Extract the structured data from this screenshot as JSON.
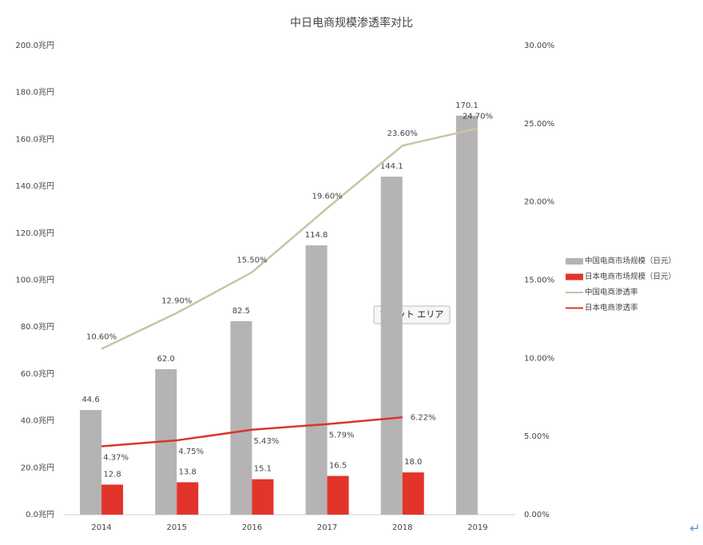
{
  "chart_data": {
    "type": "bar_line",
    "title": "中日电商规模渗透率对比",
    "categories": [
      "2014",
      "2015",
      "2016",
      "2017",
      "2018",
      "2019"
    ],
    "series": [
      {
        "name": "中国电商市场规模（日元）",
        "type": "bar",
        "color": "#b5b3b4",
        "values": [
          44.6,
          62.0,
          82.5,
          114.8,
          144.1,
          170.1
        ],
        "value_labels": [
          "44.6",
          "62.0",
          "82.5",
          "114.8",
          "144.1",
          "170.1"
        ]
      },
      {
        "name": "日本电商市场规模（日元）",
        "type": "bar",
        "color": "#e2342a",
        "values": [
          12.8,
          13.8,
          15.1,
          16.5,
          18.0,
          null
        ],
        "value_labels": [
          "12.8",
          "13.8",
          "15.1",
          "16.5",
          "18.0",
          null
        ]
      },
      {
        "name": "中国电商渗透率",
        "type": "line",
        "axis": "y2",
        "color": "#c9c4a3",
        "values": [
          10.6,
          12.9,
          15.5,
          19.6,
          23.6,
          24.7
        ],
        "value_labels": [
          "10.60%",
          "12.90%",
          "15.50%",
          "19.60%",
          "23.60%",
          "24.70%"
        ]
      },
      {
        "name": "日本电商渗透率",
        "type": "line",
        "axis": "y2",
        "color": "#d9362b",
        "values": [
          4.37,
          4.75,
          5.43,
          5.79,
          6.22,
          null
        ],
        "value_labels": [
          "4.37%",
          "4.75%",
          "5.43%",
          "5.79%",
          "6.22%",
          null
        ]
      }
    ],
    "ylim": [
      0,
      200
    ],
    "yticks": [
      {
        "value": 0,
        "label": "0.0兆円"
      },
      {
        "value": 20,
        "label": "20.0兆円"
      },
      {
        "value": 40,
        "label": "40.0兆円"
      },
      {
        "value": 60,
        "label": "60.0兆円"
      },
      {
        "value": 80,
        "label": "80.0兆円"
      },
      {
        "value": 100,
        "label": "100.0兆円"
      },
      {
        "value": 120,
        "label": "120.0兆円"
      },
      {
        "value": 140,
        "label": "140.0兆円"
      },
      {
        "value": 160,
        "label": "160.0兆円"
      },
      {
        "value": 180,
        "label": "180.0兆円"
      },
      {
        "value": 200,
        "label": "200.0兆円"
      }
    ],
    "y2lim": [
      0,
      30
    ],
    "y2ticks": [
      {
        "value": 0,
        "label": "0.00%"
      },
      {
        "value": 5,
        "label": "5.00%"
      },
      {
        "value": 10,
        "label": "10.00%"
      },
      {
        "value": 15,
        "label": "15.00%"
      },
      {
        "value": 20,
        "label": "20.00%"
      },
      {
        "value": 25,
        "label": "25.00%"
      },
      {
        "value": 30,
        "label": "30.00%"
      }
    ],
    "grid": false,
    "legend": "right",
    "tooltip": "プロット エリア",
    "return_mark": "↵"
  }
}
